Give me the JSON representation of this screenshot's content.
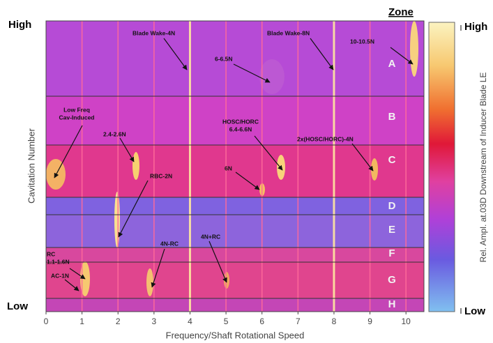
{
  "chart_data": {
    "type": "heatmap",
    "x_label": "Frequency/Shaft Rotational Speed",
    "y_label": "Cavitation Number",
    "y_top_label": "High",
    "y_bottom_label": "Low",
    "xlim": [
      0,
      10.5
    ],
    "xticks": [
      0,
      1,
      2,
      3,
      4,
      5,
      6,
      7,
      8,
      9,
      10
    ],
    "zone_title": "Zone",
    "zones": [
      "A",
      "B",
      "C",
      "D",
      "E",
      "F",
      "G",
      "H"
    ],
    "colorbar": {
      "label": "Rel. Ampl. at.03D Downstream of Inducer Blade LE",
      "high_label": "High",
      "low_label": "Low"
    },
    "annotations": [
      [
        "Blade Wake-4N"
      ],
      [
        "Blade Wake-8N"
      ],
      [
        "6-6.5N"
      ],
      [
        "10-10.5N"
      ],
      [
        "Low Freq",
        "Cav-Induced"
      ],
      [
        "2.4-2.6N"
      ],
      [
        "RBC-2N"
      ],
      [
        "HOSC/HORC",
        "6.4-6.6N"
      ],
      [
        "6N"
      ],
      [
        "2x(HOSC/HORC)-4N"
      ],
      [
        "RC",
        "1.1-1.6N"
      ],
      [
        "4N-RC"
      ],
      [
        "4N+RC"
      ],
      [
        "AC-1N"
      ]
    ]
  }
}
